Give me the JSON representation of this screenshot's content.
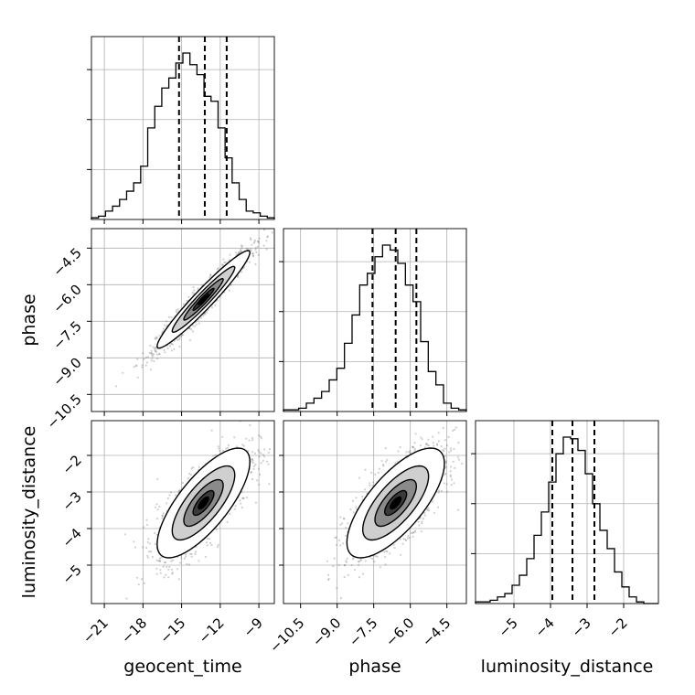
{
  "chart_data": {
    "type": "corner",
    "title": "",
    "parameters": [
      "geocent_time",
      "phase",
      "luminosity_distance"
    ],
    "ranges": {
      "geocent_time": [
        -22.0,
        -7.8
      ],
      "phase": [
        -11.2,
        -3.7
      ],
      "luminosity_distance": [
        -6.05,
        -1.05
      ]
    },
    "ticks": {
      "geocent_time": {
        "values": [
          -21,
          -18,
          -15,
          -12,
          -9
        ],
        "labels": [
          "−21",
          "−18",
          "−15",
          "−12",
          "−9"
        ]
      },
      "phase": {
        "values": [
          -10.5,
          -9.0,
          -7.5,
          -6.0,
          -4.5
        ],
        "labels": [
          "−10.5",
          "−9.0",
          "−7.5",
          "−6.0",
          "−4.5"
        ]
      },
      "luminosity_distance": {
        "values": [
          -5,
          -4,
          -3,
          -2
        ],
        "labels": [
          "−5",
          "−4",
          "−3",
          "−2"
        ]
      }
    },
    "quantiles": {
      "geocent_time": [
        -15.2,
        -13.2,
        -11.5
      ],
      "phase": [
        -7.55,
        -6.6,
        -5.75
      ],
      "luminosity_distance": [
        -3.95,
        -3.4,
        -2.8
      ]
    },
    "marginals": {
      "geocent_time": [
        0.01,
        0.02,
        0.05,
        0.08,
        0.12,
        0.17,
        0.22,
        0.32,
        0.55,
        0.68,
        0.79,
        0.85,
        0.94,
        1.0,
        0.93,
        0.87,
        0.74,
        0.71,
        0.55,
        0.37,
        0.22,
        0.12,
        0.05,
        0.04,
        0.02,
        0.01
      ],
      "phase": [
        0.01,
        0.01,
        0.02,
        0.05,
        0.08,
        0.12,
        0.19,
        0.26,
        0.41,
        0.58,
        0.76,
        0.83,
        0.93,
        1.0,
        0.97,
        0.89,
        0.76,
        0.66,
        0.42,
        0.24,
        0.16,
        0.05,
        0.02,
        0.01
      ],
      "luminosity_distance": [
        0.01,
        0.01,
        0.02,
        0.04,
        0.06,
        0.11,
        0.17,
        0.27,
        0.41,
        0.55,
        0.73,
        0.9,
        1.0,
        0.99,
        0.92,
        0.78,
        0.6,
        0.44,
        0.33,
        0.19,
        0.1,
        0.04,
        0.01,
        0.0,
        0.0
      ]
    },
    "correlations": [
      {
        "x": "geocent_time",
        "y": "phase",
        "rho": 0.96
      },
      {
        "x": "geocent_time",
        "y": "luminosity_distance",
        "rho": 0.75
      },
      {
        "x": "phase",
        "y": "luminosity_distance",
        "rho": 0.72
      }
    ],
    "center": {
      "geocent_time": -13.3,
      "phase": -6.6,
      "luminosity_distance": -3.3
    },
    "spread": {
      "geocent_time": 1.8,
      "phase": 1.0,
      "luminosity_distance": 0.75
    },
    "contour_levels": [
      0.12,
      0.39,
      0.68,
      0.86
    ],
    "grid": true
  }
}
